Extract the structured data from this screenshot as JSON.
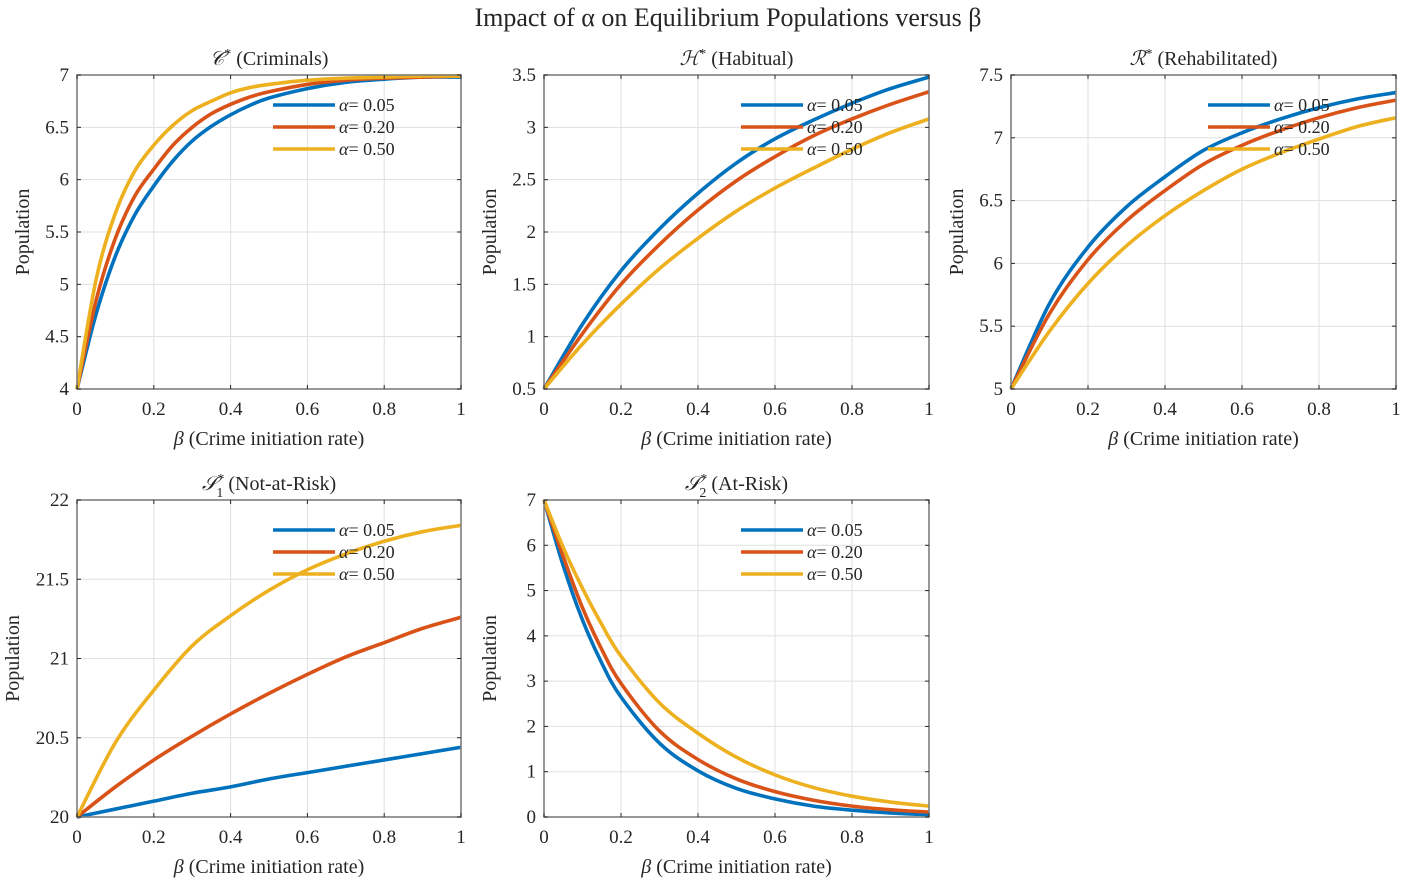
{
  "figure_title": "Impact of α on Equilibrium Populations versus β",
  "series_colors": [
    "#0072BD",
    "#D95319",
    "#EDB120"
  ],
  "chart_data": [
    {
      "type": "line",
      "id": "criminals",
      "title_symbol": "𝒞*",
      "title": "𝒞* (Criminals)",
      "title_text": "(Criminals)",
      "xlabel": "β (Crime initiation rate)",
      "ylabel": "Population",
      "xlim": [
        0,
        1
      ],
      "ylim": [
        4,
        7
      ],
      "xticks": [
        0,
        0.2,
        0.4,
        0.6,
        0.8,
        1
      ],
      "xtick_labels": [
        "0",
        "0.2",
        "0.4",
        "0.6",
        "0.8",
        "1"
      ],
      "yticks": [
        4,
        4.5,
        5,
        5.5,
        6,
        6.5,
        7
      ],
      "ytick_labels": [
        "4",
        "4.5",
        "5",
        "5.5",
        "6",
        "6.5",
        "7"
      ],
      "grid": true,
      "legend_position": "top-right",
      "x": [
        0,
        0.05,
        0.1,
        0.15,
        0.2,
        0.25,
        0.3,
        0.35,
        0.4,
        0.45,
        0.5,
        0.6,
        0.7,
        0.8,
        0.9,
        1.0
      ],
      "series": [
        {
          "name": "α= 0.05",
          "values": [
            4.0,
            4.72,
            5.27,
            5.66,
            5.94,
            6.18,
            6.37,
            6.51,
            6.62,
            6.71,
            6.78,
            6.87,
            6.93,
            6.96,
            6.98,
            6.98
          ]
        },
        {
          "name": "α= 0.20",
          "values": [
            4.0,
            4.85,
            5.44,
            5.84,
            6.1,
            6.33,
            6.5,
            6.63,
            6.72,
            6.79,
            6.84,
            6.91,
            6.95,
            6.97,
            6.98,
            6.99
          ]
        },
        {
          "name": "α= 0.50",
          "values": [
            4.0,
            5.05,
            5.68,
            6.08,
            6.33,
            6.52,
            6.66,
            6.75,
            6.83,
            6.88,
            6.91,
            6.95,
            6.97,
            6.98,
            6.99,
            6.99
          ]
        }
      ]
    },
    {
      "type": "line",
      "id": "habitual",
      "title_symbol": "ℋ*",
      "title": "ℋ* (Habitual)",
      "title_text": "(Habitual)",
      "xlabel": "β (Crime initiation rate)",
      "ylabel": "Population",
      "xlim": [
        0,
        1
      ],
      "ylim": [
        0.5,
        3.5
      ],
      "xticks": [
        0,
        0.2,
        0.4,
        0.6,
        0.8,
        1
      ],
      "xtick_labels": [
        "0",
        "0.2",
        "0.4",
        "0.6",
        "0.8",
        "1"
      ],
      "yticks": [
        0.5,
        1,
        1.5,
        2,
        2.5,
        3,
        3.5
      ],
      "ytick_labels": [
        "0.5",
        "1",
        "1.5",
        "2",
        "2.5",
        "3",
        "3.5"
      ],
      "grid": true,
      "legend_position": "top-right",
      "x": [
        0,
        0.1,
        0.2,
        0.3,
        0.4,
        0.5,
        0.6,
        0.7,
        0.8,
        0.9,
        1.0
      ],
      "series": [
        {
          "name": "α= 0.05",
          "values": [
            0.5,
            1.12,
            1.63,
            2.03,
            2.37,
            2.66,
            2.89,
            3.07,
            3.23,
            3.37,
            3.48
          ]
        },
        {
          "name": "α= 0.20",
          "values": [
            0.5,
            1.03,
            1.5,
            1.88,
            2.21,
            2.49,
            2.72,
            2.92,
            3.08,
            3.22,
            3.34
          ]
        },
        {
          "name": "α= 0.50",
          "values": [
            0.5,
            0.93,
            1.31,
            1.65,
            1.94,
            2.2,
            2.42,
            2.61,
            2.79,
            2.95,
            3.08
          ]
        }
      ]
    },
    {
      "type": "line",
      "id": "rehabilitated",
      "title_symbol": "ℛ*",
      "title": "ℛ* (Rehabilitated)",
      "title_text": "(Rehabilitated)",
      "xlabel": "β (Crime initiation rate)",
      "ylabel": "Population",
      "xlim": [
        0,
        1
      ],
      "ylim": [
        5,
        7.5
      ],
      "xticks": [
        0,
        0.2,
        0.4,
        0.6,
        0.8,
        1
      ],
      "xtick_labels": [
        "0",
        "0.2",
        "0.4",
        "0.6",
        "0.8",
        "1"
      ],
      "yticks": [
        5,
        5.5,
        6,
        6.5,
        7,
        7.5
      ],
      "ytick_labels": [
        "5",
        "5.5",
        "6",
        "6.5",
        "7",
        "7.5"
      ],
      "grid": true,
      "legend_position": "top-right",
      "x": [
        0,
        0.1,
        0.2,
        0.3,
        0.4,
        0.5,
        0.6,
        0.7,
        0.8,
        0.9,
        1.0
      ],
      "series": [
        {
          "name": "α= 0.05",
          "values": [
            5.0,
            5.68,
            6.13,
            6.45,
            6.69,
            6.9,
            7.04,
            7.15,
            7.24,
            7.31,
            7.36
          ]
        },
        {
          "name": "α= 0.20",
          "values": [
            5.0,
            5.6,
            6.03,
            6.34,
            6.58,
            6.79,
            6.94,
            7.06,
            7.16,
            7.24,
            7.3
          ]
        },
        {
          "name": "α= 0.50",
          "values": [
            5.0,
            5.46,
            5.84,
            6.14,
            6.38,
            6.58,
            6.75,
            6.88,
            6.99,
            7.09,
            7.16
          ]
        }
      ]
    },
    {
      "type": "line",
      "id": "not-at-risk",
      "title_symbol": "𝒮",
      "title_subscript": "1",
      "title": "𝒮₁* (Not-at-Risk)",
      "title_text": "(Not-at-Risk)",
      "xlabel": "β (Crime initiation rate)",
      "ylabel": "Population",
      "xlim": [
        0,
        1
      ],
      "ylim": [
        20,
        22
      ],
      "xticks": [
        0,
        0.2,
        0.4,
        0.6,
        0.8,
        1
      ],
      "xtick_labels": [
        "0",
        "0.2",
        "0.4",
        "0.6",
        "0.8",
        "1"
      ],
      "yticks": [
        20,
        20.5,
        21,
        21.5,
        22
      ],
      "ytick_labels": [
        "20",
        "20.5",
        "21",
        "21.5",
        "22"
      ],
      "grid": true,
      "legend_position": "top-right",
      "x": [
        0,
        0.1,
        0.2,
        0.3,
        0.4,
        0.5,
        0.6,
        0.7,
        0.8,
        0.9,
        1.0
      ],
      "series": [
        {
          "name": "α= 0.05",
          "values": [
            20.0,
            20.05,
            20.1,
            20.15,
            20.19,
            20.24,
            20.28,
            20.32,
            20.36,
            20.4,
            20.44
          ]
        },
        {
          "name": "α= 0.20",
          "values": [
            20.0,
            20.19,
            20.36,
            20.51,
            20.65,
            20.78,
            20.9,
            21.01,
            21.1,
            21.19,
            21.26
          ]
        },
        {
          "name": "α= 0.50",
          "values": [
            20.0,
            20.47,
            20.8,
            21.08,
            21.27,
            21.43,
            21.56,
            21.66,
            21.74,
            21.8,
            21.84
          ]
        }
      ]
    },
    {
      "type": "line",
      "id": "at-risk",
      "title_symbol": "𝒮",
      "title_subscript": "2",
      "title": "𝒮₂* (At-Risk)",
      "title_text": "(At-Risk)",
      "xlabel": "β (Crime initiation rate)",
      "ylabel": "Population",
      "xlim": [
        0,
        1
      ],
      "ylim": [
        0,
        7
      ],
      "xticks": [
        0,
        0.2,
        0.4,
        0.6,
        0.8,
        1
      ],
      "xtick_labels": [
        "0",
        "0.2",
        "0.4",
        "0.6",
        "0.8",
        "1"
      ],
      "yticks": [
        0,
        1,
        2,
        3,
        4,
        5,
        6,
        7
      ],
      "ytick_labels": [
        "0",
        "1",
        "2",
        "3",
        "4",
        "5",
        "6",
        "7"
      ],
      "grid": true,
      "legend_position": "top-right",
      "x": [
        0,
        0.05,
        0.1,
        0.15,
        0.2,
        0.3,
        0.4,
        0.5,
        0.6,
        0.7,
        0.8,
        0.9,
        1.0
      ],
      "series": [
        {
          "name": "α= 0.05",
          "values": [
            7.0,
            5.55,
            4.35,
            3.4,
            2.65,
            1.63,
            1.02,
            0.63,
            0.4,
            0.24,
            0.15,
            0.09,
            0.05
          ]
        },
        {
          "name": "α= 0.20",
          "values": [
            7.0,
            5.75,
            4.62,
            3.7,
            2.95,
            1.9,
            1.27,
            0.84,
            0.56,
            0.37,
            0.24,
            0.16,
            0.11
          ]
        },
        {
          "name": "α= 0.50",
          "values": [
            7.0,
            5.95,
            5.05,
            4.25,
            3.55,
            2.52,
            1.85,
            1.32,
            0.93,
            0.65,
            0.46,
            0.33,
            0.24
          ]
        }
      ]
    }
  ]
}
